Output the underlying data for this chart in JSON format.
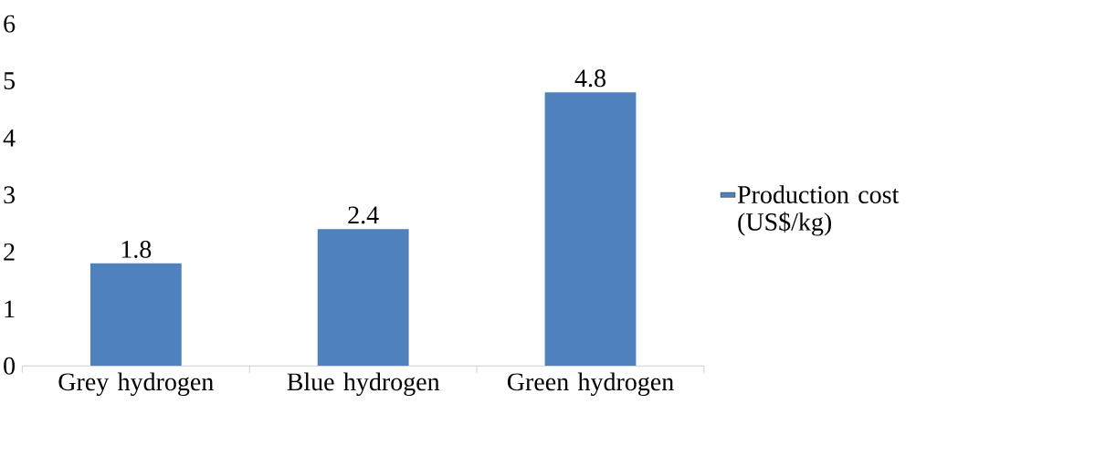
{
  "chart_data": {
    "type": "bar",
    "categories": [
      "Grey hydrogen",
      "Blue hydrogen",
      "Green hydrogen"
    ],
    "series": [
      {
        "name": "Production cost (US$/kg)",
        "color": "#4f81bd",
        "values": [
          1.8,
          2.4,
          4.8
        ]
      }
    ],
    "ylim": [
      0,
      6
    ],
    "yticks": [
      0,
      1,
      2,
      3,
      4,
      5,
      6
    ],
    "data_labels": true,
    "legend": "right",
    "grid": false
  }
}
